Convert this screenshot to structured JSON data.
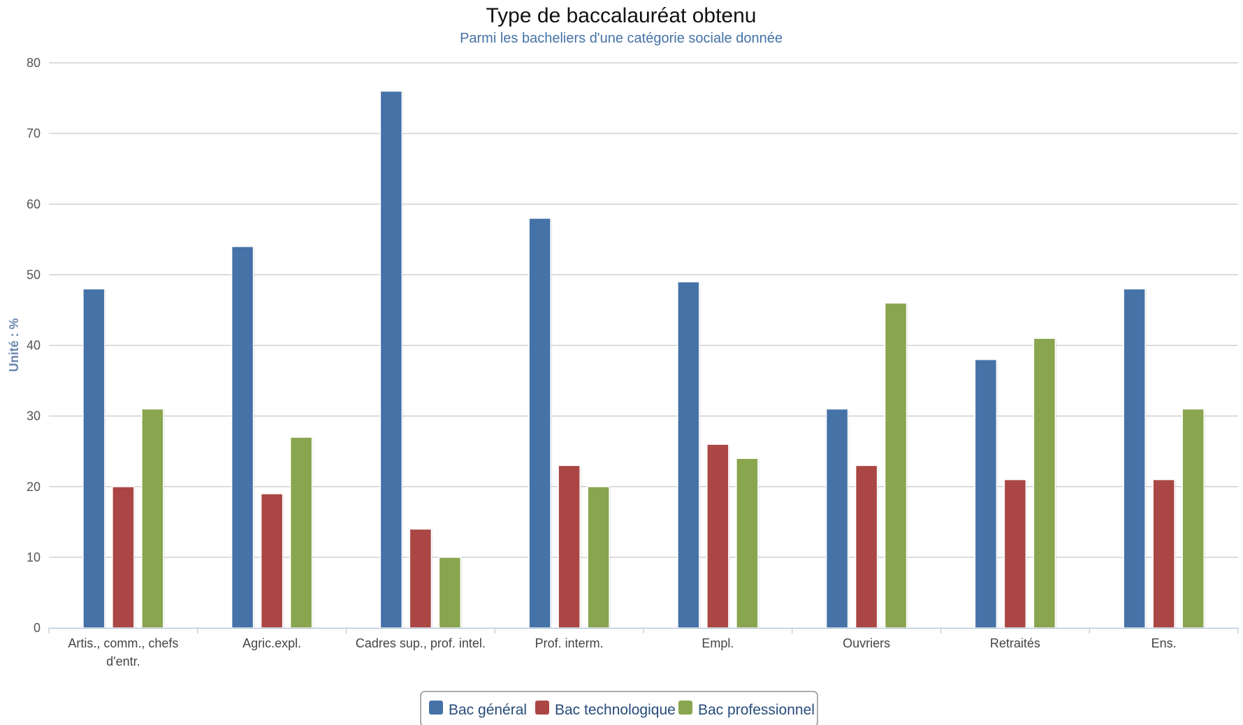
{
  "chart_data": {
    "type": "bar",
    "title": "Type de baccalauréat obtenu",
    "subtitle": "Parmi les bacheliers d'une catégorie sociale donnée",
    "ylabel": "Unité : %",
    "xlabel": "",
    "ylim": [
      0,
      80
    ],
    "yticks": [
      0,
      10,
      20,
      30,
      40,
      50,
      60,
      70,
      80
    ],
    "grid": true,
    "legend_position": "bottom-center",
    "categories": [
      [
        "Artis., comm., chefs",
        "d'entr."
      ],
      [
        "Agric.expl."
      ],
      [
        "Cadres sup., prof. intel."
      ],
      [
        "Prof. interm."
      ],
      [
        "Empl."
      ],
      [
        "Ouvriers"
      ],
      [
        "Retraités"
      ],
      [
        "Ens."
      ]
    ],
    "series": [
      {
        "name": "Bac général",
        "color": "#4572a7",
        "values": [
          48,
          54,
          76,
          58,
          49,
          31,
          38,
          48
        ]
      },
      {
        "name": "Bac technologique",
        "color": "#aa4643",
        "values": [
          20,
          19,
          14,
          23,
          26,
          23,
          21,
          21
        ]
      },
      {
        "name": "Bac professionnel",
        "color": "#89a54e",
        "values": [
          31,
          27,
          10,
          20,
          24,
          46,
          41,
          31
        ]
      }
    ]
  }
}
